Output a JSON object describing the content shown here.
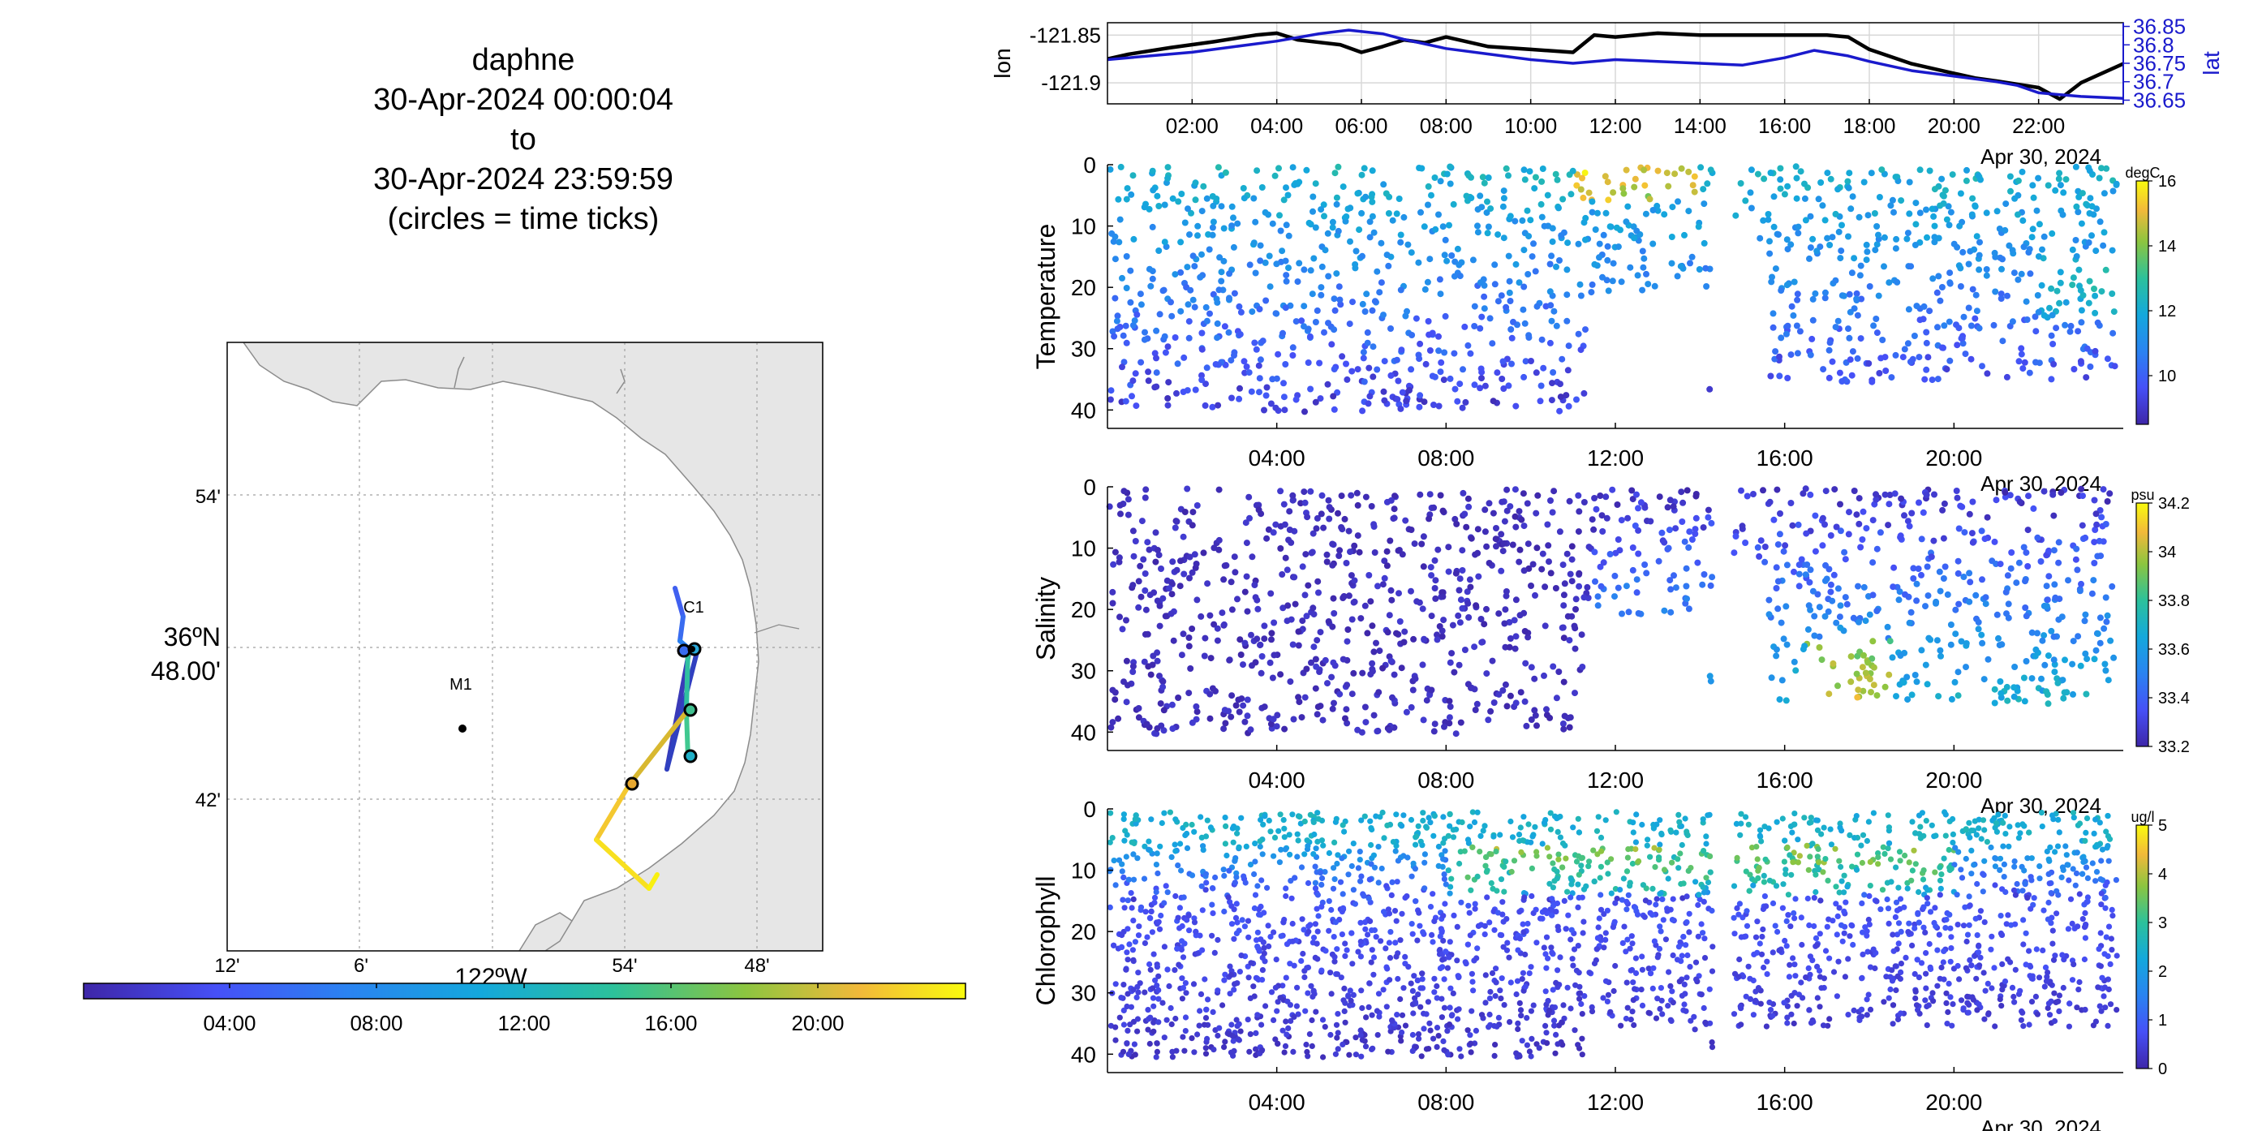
{
  "title": {
    "line1": "daphne",
    "line2": "30-Apr-2024 00:00:04",
    "line3": "to",
    "line4": "30-Apr-2024 23:59:59",
    "line5": "(circles = time ticks)"
  },
  "map": {
    "lat_tick_labels": [
      "54'",
      "36ºN 48.00'",
      "42'"
    ],
    "lat_label_major_line1": "36ºN",
    "lat_label_major_line2": "48.00'",
    "lon_tick_labels": [
      "12'",
      "6'",
      "122ºW",
      "54'",
      "48'"
    ],
    "station_labels": [
      "C1",
      "M1"
    ],
    "colorbar_ticks": [
      "04:00",
      "08:00",
      "12:00",
      "16:00",
      "20:00"
    ],
    "colors": {
      "land": "#e6e6e6",
      "coast": "#8c8c8c",
      "grid": "#a0a0a0"
    }
  },
  "chart_data": [
    {
      "type": "line",
      "ylabel": "lon",
      "y2label": "lat",
      "x_tick_labels": [
        "02:00",
        "04:00",
        "06:00",
        "08:00",
        "10:00",
        "12:00",
        "14:00",
        "16:00",
        "18:00",
        "20:00",
        "22:00"
      ],
      "x_annotation": "Apr 30, 2024",
      "y_ticks": [
        "-121.85",
        "-121.9"
      ],
      "y2_ticks": [
        "36.85",
        "36.8",
        "36.75",
        "36.7",
        "36.65"
      ],
      "xlim_hours": [
        0,
        24
      ],
      "ylim": [
        -121.922,
        -121.837
      ],
      "y2lim": [
        36.64,
        36.86
      ],
      "grid": true,
      "series": [
        {
          "name": "lon",
          "color": "#000000",
          "x": [
            0.0,
            0.5,
            1.5,
            2.5,
            3.5,
            4.0,
            4.5,
            5.5,
            6.0,
            6.5,
            7.0,
            7.5,
            8.0,
            9.0,
            10.0,
            11.0,
            11.5,
            12.0,
            13.0,
            14.0,
            15.0,
            16.0,
            17.0,
            17.5,
            18.0,
            19.0,
            20.0,
            20.5,
            21.0,
            22.0,
            22.5,
            23.0,
            24.0
          ],
          "y": [
            -121.875,
            -121.87,
            -121.863,
            -121.857,
            -121.85,
            -121.848,
            -121.855,
            -121.86,
            -121.868,
            -121.862,
            -121.855,
            -121.858,
            -121.852,
            -121.862,
            -121.865,
            -121.868,
            -121.85,
            -121.852,
            -121.848,
            -121.85,
            -121.85,
            -121.85,
            -121.85,
            -121.852,
            -121.865,
            -121.88,
            -121.89,
            -121.895,
            -121.898,
            -121.905,
            -121.917,
            -121.9,
            -121.88
          ]
        },
        {
          "name": "lat",
          "color": "#1a1acc",
          "x": [
            0.0,
            1.0,
            2.0,
            3.0,
            4.0,
            5.0,
            5.7,
            6.5,
            7.0,
            8.0,
            9.0,
            10.0,
            11.0,
            12.0,
            13.0,
            14.0,
            15.0,
            16.0,
            16.7,
            17.5,
            18.0,
            19.0,
            20.0,
            21.0,
            21.5,
            22.0,
            23.0,
            24.0
          ],
          "y": [
            36.76,
            36.77,
            36.78,
            36.795,
            36.81,
            36.83,
            36.84,
            36.83,
            36.815,
            36.79,
            36.775,
            36.76,
            36.75,
            36.76,
            36.755,
            36.75,
            36.745,
            36.765,
            36.785,
            36.77,
            36.755,
            36.73,
            36.715,
            36.7,
            36.69,
            36.67,
            36.66,
            36.655
          ]
        }
      ]
    },
    {
      "type": "scatter",
      "ylabel": "Temperature",
      "colorbar_label": "degC",
      "colorbar_ticks": [
        "16",
        "14",
        "12",
        "10"
      ],
      "color_range": [
        8.5,
        16
      ],
      "x_tick_labels": [
        "04:00",
        "08:00",
        "12:00",
        "16:00",
        "20:00"
      ],
      "x_annotation": "Apr 30, 2024",
      "y_tick_labels": [
        "0",
        "10",
        "20",
        "30",
        "40"
      ],
      "ylim": [
        0,
        43
      ],
      "xlim_hours": [
        0,
        24
      ]
    },
    {
      "type": "scatter",
      "ylabel": "Salinity",
      "colorbar_label": "psu",
      "colorbar_ticks": [
        "34.2",
        "34",
        "33.8",
        "33.6",
        "33.4",
        "33.2"
      ],
      "color_range": [
        33.2,
        34.2
      ],
      "x_tick_labels": [
        "04:00",
        "08:00",
        "12:00",
        "16:00",
        "20:00"
      ],
      "x_annotation": "Apr 30, 2024",
      "y_tick_labels": [
        "0",
        "10",
        "20",
        "30",
        "40"
      ],
      "ylim": [
        0,
        43
      ],
      "xlim_hours": [
        0,
        24
      ]
    },
    {
      "type": "scatter",
      "ylabel": "Chlorophyll",
      "colorbar_label": "ug/l",
      "colorbar_ticks": [
        "5",
        "4",
        "3",
        "2",
        "1",
        "0"
      ],
      "color_range": [
        0,
        5
      ],
      "x_tick_labels": [
        "04:00",
        "08:00",
        "12:00",
        "16:00",
        "20:00"
      ],
      "x_annotation": "Apr 30, 2024",
      "y_tick_labels": [
        "0",
        "10",
        "20",
        "30",
        "40"
      ],
      "ylim": [
        0,
        43
      ],
      "xlim_hours": [
        0,
        24
      ]
    }
  ]
}
